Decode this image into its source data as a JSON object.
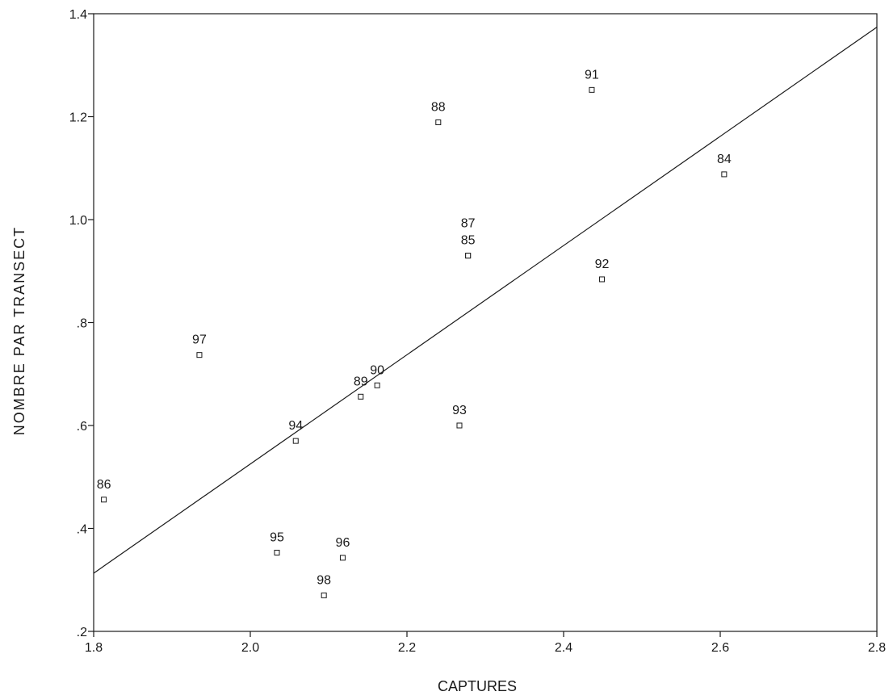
{
  "chart_data": {
    "type": "scatter",
    "title": "",
    "xlabel": "CAPTURES",
    "ylabel": "NOMBRE PAR TRANSECT",
    "xlim": [
      1.8,
      2.8
    ],
    "ylim": [
      0.2,
      1.4
    ],
    "x_ticks": [
      1.8,
      2.0,
      2.2,
      2.4,
      2.6,
      2.8
    ],
    "x_tick_labels": [
      "1.8",
      "2.0",
      "2.2",
      "2.4",
      "2.6",
      "2.8"
    ],
    "y_ticks": [
      0.2,
      0.4,
      0.6,
      0.8,
      1.0,
      1.2,
      1.4
    ],
    "y_tick_labels": [
      ".2",
      ".4",
      ".6",
      ".8",
      "1.0",
      "1.2",
      "1.4"
    ],
    "grid": false,
    "marker": "open-square",
    "points": [
      {
        "label": "84",
        "x": 2.605,
        "y": 1.088
      },
      {
        "label": "85",
        "x": 2.278,
        "y": 0.93
      },
      {
        "label": "86",
        "x": 1.813,
        "y": 0.456
      },
      {
        "label": "87",
        "x": 2.278,
        "y": 0.93
      },
      {
        "label": "88",
        "x": 2.24,
        "y": 1.189
      },
      {
        "label": "89",
        "x": 2.141,
        "y": 0.656
      },
      {
        "label": "90",
        "x": 2.162,
        "y": 0.678
      },
      {
        "label": "91",
        "x": 2.436,
        "y": 1.252
      },
      {
        "label": "92",
        "x": 2.449,
        "y": 0.884
      },
      {
        "label": "93",
        "x": 2.267,
        "y": 0.6
      },
      {
        "label": "94",
        "x": 2.058,
        "y": 0.57
      },
      {
        "label": "95",
        "x": 2.034,
        "y": 0.353
      },
      {
        "label": "96",
        "x": 2.118,
        "y": 0.343
      },
      {
        "label": "97",
        "x": 1.935,
        "y": 0.737
      },
      {
        "label": "98",
        "x": 2.094,
        "y": 0.27
      }
    ],
    "regression_line": {
      "x": [
        1.8,
        2.8
      ],
      "y": [
        0.313,
        1.374
      ]
    },
    "colors": {
      "marker": "#1a1a1a",
      "line": "#1a1a1a",
      "text": "#1a1a1a"
    }
  }
}
